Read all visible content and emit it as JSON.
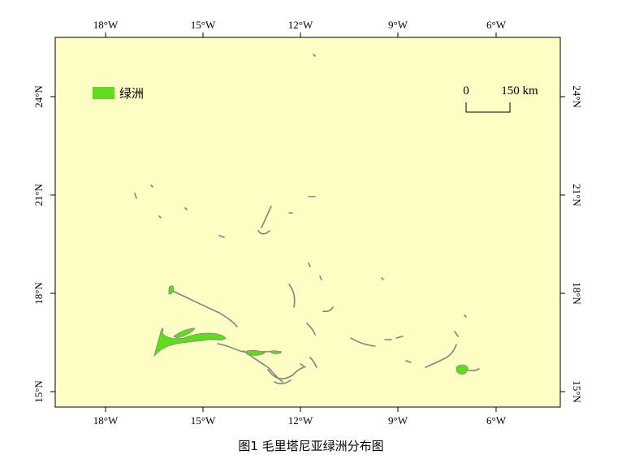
{
  "map": {
    "background_color": "#fdfdc4",
    "frame_color": "#000000",
    "oasis_color": "#5fdc1c",
    "border_color": "#7a8a7a",
    "lon_ticks": [
      "18°W",
      "15°W",
      "12°W",
      "9°W",
      "6°W"
    ],
    "lat_ticks": [
      "24°N",
      "21°N",
      "18°N",
      "15°N"
    ],
    "legend": {
      "label": "绿洲",
      "swatch_color": "#5fdc1c"
    },
    "scale_bar": {
      "start_label": "0",
      "end_label": "150 km"
    }
  },
  "caption": "图1  毛里塔尼亚绿洲分布图"
}
